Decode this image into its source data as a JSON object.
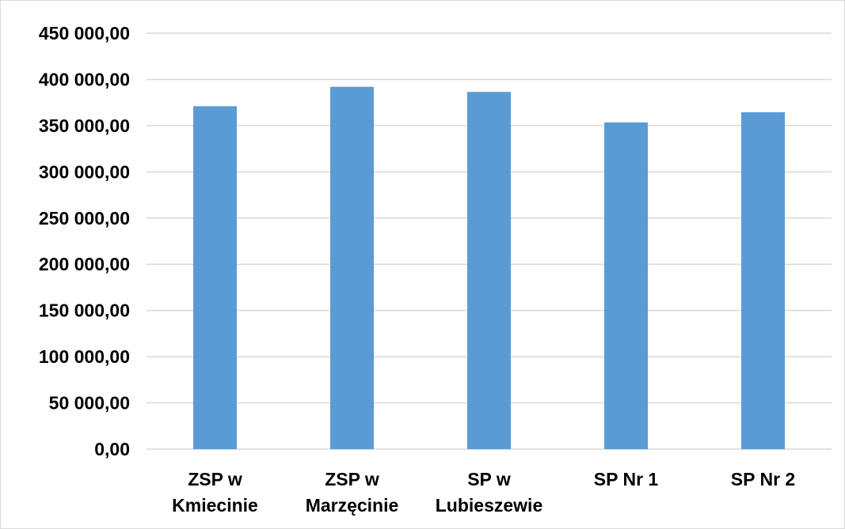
{
  "chart_data": {
    "type": "bar",
    "categories": [
      [
        "ZSP w",
        "Kmiecinie"
      ],
      [
        "ZSP w",
        "Marzęcinie"
      ],
      [
        "SP w",
        "Lubieszewie"
      ],
      [
        "SP Nr 1"
      ],
      [
        "SP Nr 2"
      ]
    ],
    "values": [
      371000,
      392000,
      386500,
      353500,
      364500
    ],
    "y_ticks": [
      "0,00",
      "50 000,00",
      "100 000,00",
      "150 000,00",
      "200 000,00",
      "250 000,00",
      "300 000,00",
      "350 000,00",
      "400 000,00",
      "450 000,00"
    ],
    "ylim": [
      0,
      450000
    ],
    "grid": true,
    "bar_color": "#5b9bd5",
    "gridline_color": "#d9d9d9",
    "title": "",
    "xlabel": "",
    "ylabel": ""
  }
}
